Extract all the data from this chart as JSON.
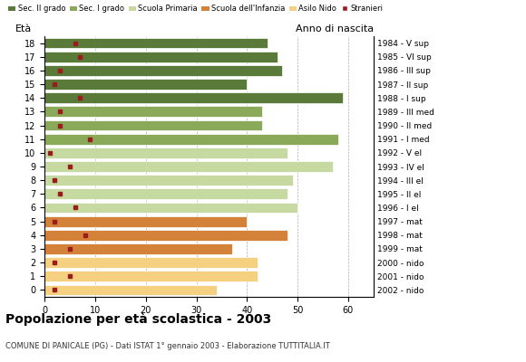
{
  "ages": [
    18,
    17,
    16,
    15,
    14,
    13,
    12,
    11,
    10,
    9,
    8,
    7,
    6,
    5,
    4,
    3,
    2,
    1,
    0
  ],
  "year_labels": [
    "1984 - V sup",
    "1985 - VI sup",
    "1986 - III sup",
    "1987 - II sup",
    "1988 - I sup",
    "1989 - III med",
    "1990 - II med",
    "1991 - I med",
    "1992 - V el",
    "1993 - IV el",
    "1994 - III el",
    "1995 - II el",
    "1996 - I el",
    "1997 - mat",
    "1998 - mat",
    "1999 - mat",
    "2000 - nido",
    "2001 - nido",
    "2002 - nido"
  ],
  "bar_values": [
    44,
    46,
    47,
    40,
    59,
    43,
    43,
    58,
    48,
    57,
    49,
    48,
    50,
    40,
    48,
    37,
    42,
    42,
    34
  ],
  "stranieri_values": [
    6,
    7,
    3,
    2,
    7,
    3,
    3,
    9,
    1,
    5,
    2,
    3,
    6,
    2,
    8,
    5,
    2,
    5,
    2
  ],
  "categories": [
    "Sec. II grado",
    "Sec. I grado",
    "Scuola Primaria",
    "Scuola dell'Infanzia",
    "Asilo Nido"
  ],
  "category_ages": {
    "Sec. II grado": [
      14,
      15,
      16,
      17,
      18
    ],
    "Sec. I grado": [
      11,
      12,
      13
    ],
    "Scuola Primaria": [
      6,
      7,
      8,
      9,
      10
    ],
    "Scuola dell'Infanzia": [
      3,
      4,
      5
    ],
    "Asilo Nido": [
      0,
      1,
      2
    ]
  },
  "colors": {
    "Sec. II grado": "#5a7a3a",
    "Sec. I grado": "#8aaa5a",
    "Scuola Primaria": "#c5d9a0",
    "Scuola dell'Infanzia": "#d4813a",
    "Asilo Nido": "#f5d080",
    "Stranieri": "#9b1c1c"
  },
  "title": "Popolazione per età scolastica - 2003",
  "subtitle": "COMUNE DI PANICALE (PG) - Dati ISTAT 1° gennaio 2003 - Elaborazione TUTTITALIA.IT",
  "xlim": [
    0,
    65
  ],
  "xticks": [
    0,
    10,
    20,
    30,
    40,
    50,
    60
  ],
  "background_color": "#ffffff",
  "grid_color": "#999999"
}
